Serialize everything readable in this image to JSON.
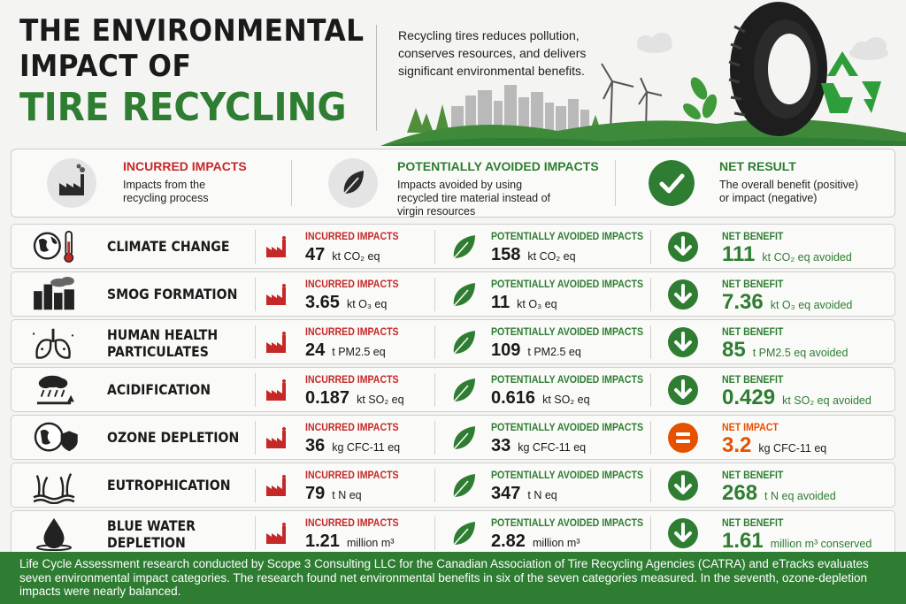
{
  "header": {
    "title_line1": "THE ENVIRONMENTAL",
    "title_line2": "IMPACT OF",
    "title_line3": "TIRE RECYCLING",
    "intro": "Recycling tires reduces pollution, conserves resources, and delivers significant environmental benefits."
  },
  "legend": {
    "incurred": {
      "title": "INCURRED IMPACTS",
      "desc": "Impacts from the recycling process",
      "icon": "factory-icon"
    },
    "avoided": {
      "title": "POTENTIALLY AVOIDED IMPACTS",
      "desc": "Impacts avoided by using recycled tire material instead of virgin resources",
      "icon": "leaf-icon"
    },
    "net": {
      "title": "NET RESULT",
      "desc": "The overall benefit (positive) or impact (negative)",
      "icon": "checkmark-icon"
    }
  },
  "labels": {
    "incurred": "INCURRED IMPACTS",
    "avoided": "POTENTIALLY AVOIDED IMPACTS"
  },
  "rows": [
    {
      "category": "CLIMATE CHANGE",
      "icon": "globe-thermometer-icon",
      "incurred_value": "47",
      "incurred_unit": "kt CO₂ eq",
      "avoided_value": "158",
      "avoided_unit": "kt CO₂ eq",
      "net_label": "NET BENEFIT",
      "net_value": "111",
      "net_unit": "kt CO₂ eq avoided",
      "net_type": "benefit"
    },
    {
      "category": "SMOG FORMATION",
      "icon": "city-smog-icon",
      "incurred_value": "3.65",
      "incurred_unit": "kt O₃ eq",
      "avoided_value": "11",
      "avoided_unit": "kt O₃ eq",
      "net_label": "NET BENEFIT",
      "net_value": "7.36",
      "net_unit": "kt O₃ eq avoided",
      "net_type": "benefit"
    },
    {
      "category": "HUMAN HEALTH\nPARTICULATES",
      "icon": "lungs-icon",
      "incurred_value": "24",
      "incurred_unit": "t PM2.5 eq",
      "avoided_value": "109",
      "avoided_unit": "t PM2.5 eq",
      "net_label": "NET BENEFIT",
      "net_value": "85",
      "net_unit": "t PM2.5 eq avoided",
      "net_type": "benefit"
    },
    {
      "category": "ACIDIFICATION",
      "icon": "acid-rain-icon",
      "incurred_value": "0.187",
      "incurred_unit": "kt SO₂ eq",
      "avoided_value": "0.616",
      "avoided_unit": "kt SO₂ eq",
      "net_label": "NET BENEFIT",
      "net_value": "0.429",
      "net_unit": "kt SO₂ eq avoided",
      "net_type": "benefit"
    },
    {
      "category": "OZONE DEPLETION",
      "icon": "globe-shield-icon",
      "incurred_value": "36",
      "incurred_unit": "kg CFC-11 eq",
      "avoided_value": "33",
      "avoided_unit": "kg CFC-11 eq",
      "net_label": "NET IMPACT",
      "net_value": "3.2",
      "net_unit": "kg CFC-11 eq",
      "net_type": "impact"
    },
    {
      "category": "EUTROPHICATION",
      "icon": "water-plants-icon",
      "incurred_value": "79",
      "incurred_unit": "t N eq",
      "avoided_value": "347",
      "avoided_unit": "t N eq",
      "net_label": "NET BENEFIT",
      "net_value": "268",
      "net_unit": "t N eq avoided",
      "net_type": "benefit"
    },
    {
      "category": "BLUE WATER\nDEPLETION",
      "icon": "water-drop-icon",
      "incurred_value": "1.21",
      "incurred_unit": "million m³",
      "avoided_value": "2.82",
      "avoided_unit": "million m³",
      "net_label": "NET BENEFIT",
      "net_value": "1.61",
      "net_unit": "million m³ conserved",
      "net_type": "benefit"
    }
  ],
  "footer": "Life Cycle Assessment research conducted by Scope 3 Consulting LLC for the Canadian Association of Tire Recycling Agencies (CATRA) and eTracks evaluates seven environmental impact categories. The research found net environmental benefits in six of the seven categories measured. In the seventh, ozone-depletion impacts were nearly balanced.",
  "colors": {
    "green": "#2e7d32",
    "red": "#c62828",
    "orange": "#e65100",
    "dark": "#1a1a1a"
  }
}
